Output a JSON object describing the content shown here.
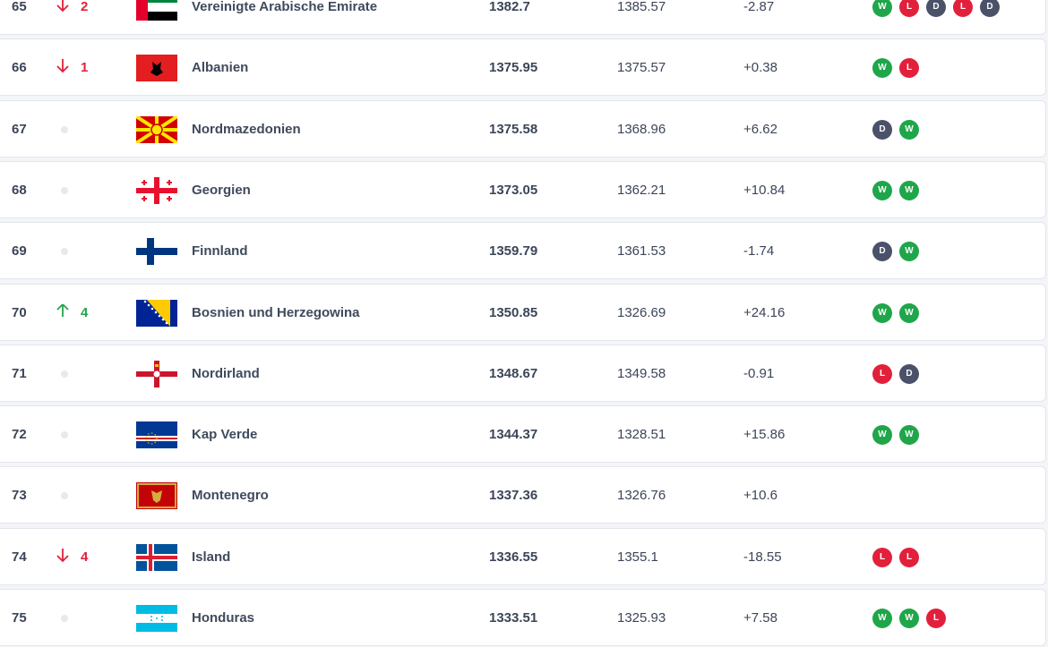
{
  "table": {
    "rows": [
      {
        "rank": 65,
        "trend": "down",
        "change": 2,
        "country": "Vereinigte Arabische Emirate",
        "points": 1382.7,
        "previous_points": 1385.57,
        "difference": "-2.87",
        "form": [
          "W",
          "L",
          "D",
          "L",
          "D"
        ]
      },
      {
        "rank": 66,
        "trend": "down",
        "change": 1,
        "country": "Albanien",
        "points": 1375.95,
        "previous_points": 1375.57,
        "difference": "+0.38",
        "form": [
          "W",
          "L"
        ]
      },
      {
        "rank": 67,
        "trend": "none",
        "country": "Nordmazedonien",
        "points": 1375.58,
        "previous_points": 1368.96,
        "difference": "+6.62",
        "form": [
          "D",
          "W"
        ]
      },
      {
        "rank": 68,
        "trend": "none",
        "country": "Georgien",
        "points": 1373.05,
        "previous_points": 1362.21,
        "difference": "+10.84",
        "form": [
          "W",
          "W"
        ]
      },
      {
        "rank": 69,
        "trend": "none",
        "country": "Finnland",
        "points": 1359.79,
        "previous_points": 1361.53,
        "difference": "-1.74",
        "form": [
          "D",
          "W"
        ]
      },
      {
        "rank": 70,
        "trend": "up",
        "change": 4,
        "country": "Bosnien und Herzegowina",
        "points": 1350.85,
        "previous_points": 1326.69,
        "difference": "+24.16",
        "form": [
          "W",
          "W"
        ]
      },
      {
        "rank": 71,
        "trend": "none",
        "country": "Nordirland",
        "points": 1348.67,
        "previous_points": 1349.58,
        "difference": "-0.91",
        "form": [
          "L",
          "D"
        ]
      },
      {
        "rank": 72,
        "trend": "none",
        "country": "Kap Verde",
        "points": 1344.37,
        "previous_points": 1328.51,
        "difference": "+15.86",
        "form": [
          "W",
          "W"
        ]
      },
      {
        "rank": 73,
        "trend": "none",
        "country": "Montenegro",
        "points": 1337.36,
        "previous_points": 1326.76,
        "difference": "+10.6",
        "form": []
      },
      {
        "rank": 74,
        "trend": "down",
        "change": 4,
        "country": "Island",
        "points": 1336.55,
        "previous_points": 1355.1,
        "difference": "-18.55",
        "form": [
          "L",
          "L"
        ]
      },
      {
        "rank": 75,
        "trend": "none",
        "country": "Honduras",
        "points": 1333.51,
        "previous_points": 1325.93,
        "difference": "+7.58",
        "form": [
          "W",
          "W",
          "L"
        ]
      }
    ]
  }
}
